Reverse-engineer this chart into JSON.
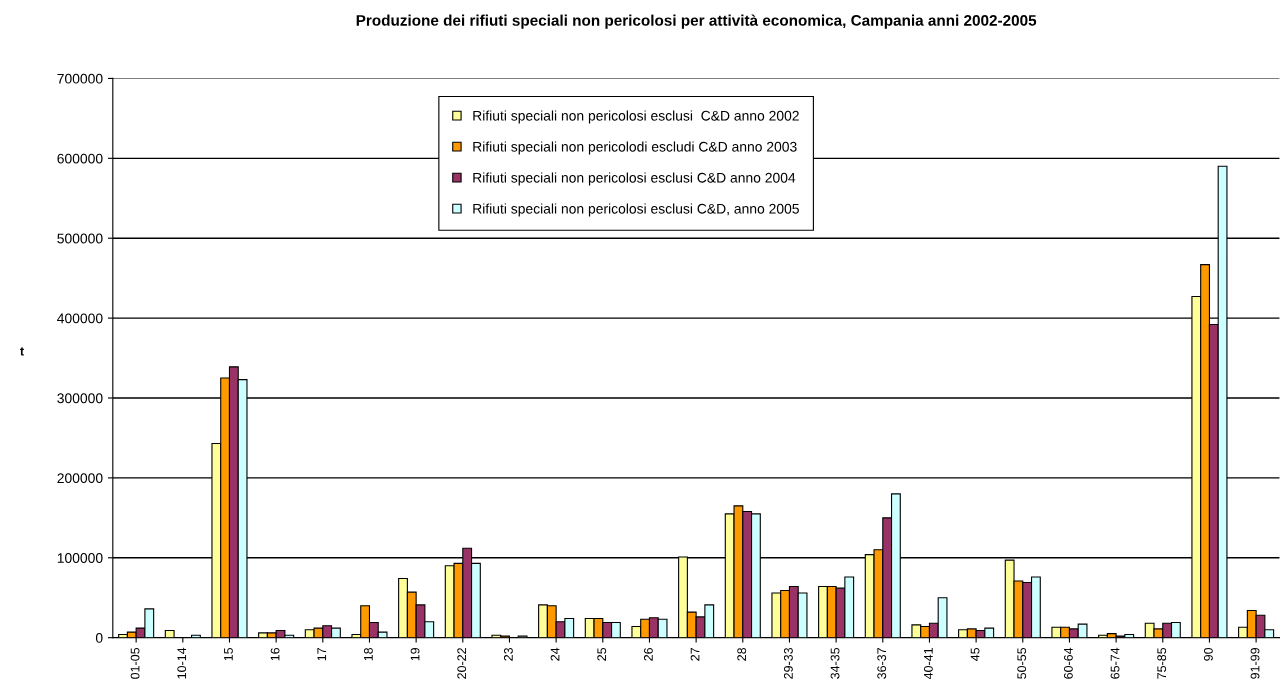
{
  "chart_data": {
    "type": "bar",
    "title": "Produzione dei rifiuti speciali non pericolosi per attività economica, Campania anni 2002-2005",
    "ylabel": "t",
    "categories": [
      "01-05",
      "10-14",
      "15",
      "16",
      "17",
      "18",
      "19",
      "20-22",
      "23",
      "24",
      "25",
      "26",
      "27",
      "28",
      "29-33",
      "34-35",
      "36-37",
      "40-41",
      "45",
      "50-55",
      "60-64",
      "65-74",
      "75-85",
      "90",
      "91-99"
    ],
    "series": [
      {
        "name": "Rifiuti speciali non pericolosi esclusi  C&D anno 2002",
        "color": "#ffff99",
        "values": [
          4000,
          9000,
          243000,
          6000,
          10000,
          4000,
          74000,
          90000,
          3000,
          41000,
          24000,
          14000,
          101000,
          155000,
          56000,
          64000,
          104000,
          16000,
          10000,
          97000,
          13000,
          3000,
          18000,
          427000,
          13000
        ]
      },
      {
        "name": "Rifiuti speciali non pericolodi escludi C&D anno 2003",
        "color": "#ff9900",
        "values": [
          7000,
          0,
          325000,
          6000,
          12000,
          40000,
          57000,
          93000,
          2000,
          40000,
          24000,
          23000,
          32000,
          165000,
          59000,
          64000,
          110000,
          14000,
          11000,
          71000,
          13000,
          5000,
          11000,
          467000,
          34000
        ]
      },
      {
        "name": "Rifiuti speciali non pericolosi esclusi C&D anno 2004",
        "color": "#993366",
        "values": [
          12000,
          0,
          339000,
          9000,
          15000,
          19000,
          41000,
          112000,
          0,
          20000,
          19000,
          25000,
          26000,
          158000,
          64000,
          62000,
          150000,
          18000,
          9000,
          69000,
          11000,
          2000,
          18000,
          392000,
          28000
        ]
      },
      {
        "name": "Rifiuti speciali non pericolosi esclusi C&D, anno 2005",
        "color": "#ccffff",
        "values": [
          36000,
          3000,
          323000,
          3000,
          12000,
          7000,
          20000,
          93000,
          2000,
          24000,
          19000,
          23000,
          41000,
          155000,
          56000,
          76000,
          180000,
          50000,
          12000,
          76000,
          17000,
          4000,
          19000,
          590000,
          10000
        ]
      }
    ],
    "ylim": [
      0,
      700000
    ],
    "yticks": [
      0,
      100000,
      200000,
      300000,
      400000,
      500000,
      600000,
      700000
    ],
    "grid": "y",
    "legend": "top"
  }
}
